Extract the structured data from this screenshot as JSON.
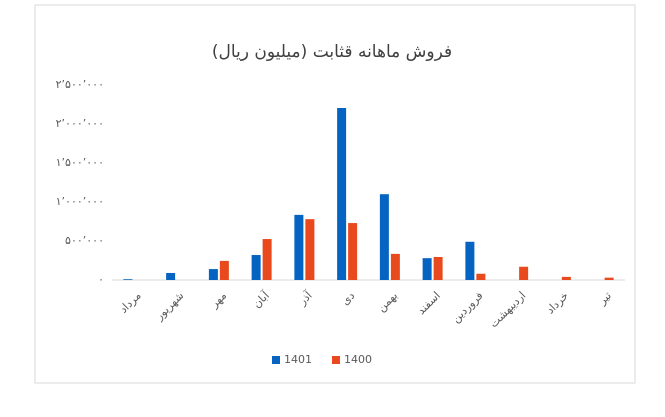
{
  "chart_data": {
    "type": "bar",
    "title": "فروش ماهانه قثابت (میلیون ریال)",
    "categories": [
      "مرداد",
      "شهریور",
      "مهر",
      "آبان",
      "آذر",
      "دی",
      "بهمن",
      "اسفند",
      "فروردین",
      "اردیبهشت",
      "خرداد",
      "تیر"
    ],
    "series": [
      {
        "name": "1401",
        "color": "#0563c1",
        "values": [
          10000,
          90000,
          140000,
          320000,
          835000,
          2205000,
          1100000,
          280000,
          490000,
          0,
          0,
          0
        ]
      },
      {
        "name": "1400",
        "color": "#e8491d",
        "values": [
          0,
          0,
          245000,
          525000,
          780000,
          730000,
          335000,
          295000,
          80000,
          170000,
          40000,
          30000
        ]
      }
    ],
    "ylim": [
      0,
      2500000
    ],
    "yticks": [
      {
        "value": 0,
        "label": "۰"
      },
      {
        "value": 500000,
        "label": "۵۰۰٬۰۰۰"
      },
      {
        "value": 1000000,
        "label": "۱٬۰۰۰٬۰۰۰"
      },
      {
        "value": 1500000,
        "label": "۱٬۵۰۰٬۰۰۰"
      },
      {
        "value": 2000000,
        "label": "۲٬۰۰۰٬۰۰۰"
      },
      {
        "value": 2500000,
        "label": "۲٬۵۰۰٬۰۰۰"
      }
    ],
    "grid": false,
    "legend": "bottom"
  }
}
